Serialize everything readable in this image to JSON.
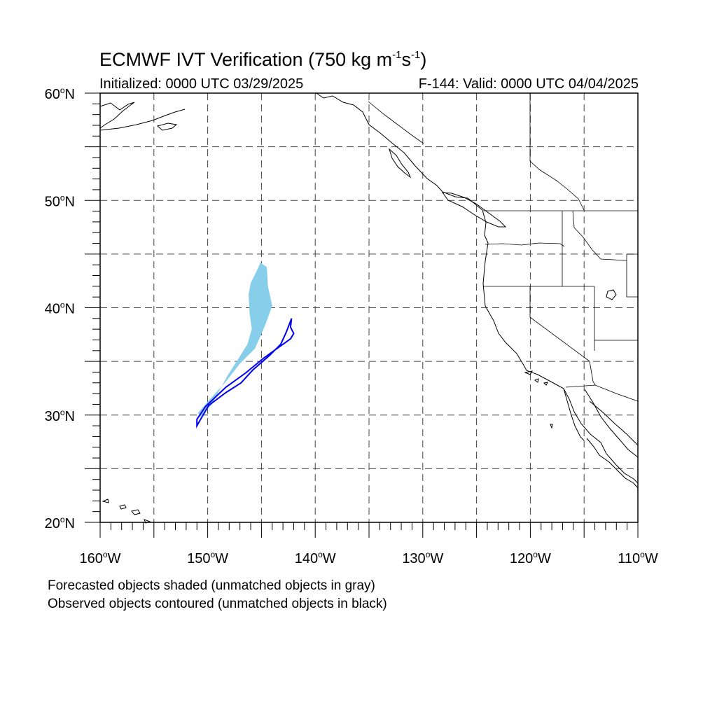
{
  "header": {
    "title_main": "ECMWF IVT Verification (750 kg m",
    "title_exp1": "-1",
    "title_mid": "s",
    "title_exp2": "-1",
    "title_end": ")",
    "initialized": "Initialized: 0000 UTC 03/29/2025",
    "valid": "F-144: Valid: 0000 UTC 04/04/2025"
  },
  "axes": {
    "lat_ticks": [
      {
        "value": 60,
        "num": "60",
        "hemi": "N"
      },
      {
        "value": 50,
        "num": "50",
        "hemi": "N"
      },
      {
        "value": 40,
        "num": "40",
        "hemi": "N"
      },
      {
        "value": 30,
        "num": "30",
        "hemi": "N"
      },
      {
        "value": 20,
        "num": "20",
        "hemi": "N"
      }
    ],
    "lon_ticks": [
      {
        "value": -160,
        "num": "160",
        "hemi": "W"
      },
      {
        "value": -150,
        "num": "150",
        "hemi": "W"
      },
      {
        "value": -140,
        "num": "140",
        "hemi": "W"
      },
      {
        "value": -130,
        "num": "130",
        "hemi": "W"
      },
      {
        "value": -120,
        "num": "120",
        "hemi": "W"
      },
      {
        "value": -110,
        "num": "110",
        "hemi": "W"
      }
    ],
    "lon_range": [
      -160,
      -110
    ],
    "lat_range": [
      20,
      60
    ],
    "grid_interval_deg": 5,
    "grid": true
  },
  "map_objects": {
    "forecast_object": {
      "color": "#87ceeb",
      "polygon": [
        [
          -145.1,
          44.2
        ],
        [
          -144.5,
          43.8
        ],
        [
          -144.4,
          42.0
        ],
        [
          -144.0,
          40.2
        ],
        [
          -144.6,
          38.5
        ],
        [
          -145.6,
          36.2
        ],
        [
          -147.0,
          34.8
        ],
        [
          -148.4,
          33.0
        ],
        [
          -149.5,
          31.8
        ],
        [
          -150.9,
          30.2
        ],
        [
          -150.7,
          29.8
        ],
        [
          -149.6,
          31.0
        ],
        [
          -148.9,
          32.3
        ],
        [
          -148.2,
          33.6
        ],
        [
          -147.3,
          35.0
        ],
        [
          -146.3,
          36.6
        ],
        [
          -145.9,
          38.0
        ],
        [
          -146.1,
          39.5
        ],
        [
          -146.2,
          41.2
        ],
        [
          -146.0,
          42.3
        ],
        [
          -145.5,
          43.3
        ]
      ]
    },
    "observed_object": {
      "color": "#0000ee",
      "polygon": [
        [
          -142.2,
          39.0
        ],
        [
          -142.3,
          38.2
        ],
        [
          -142.0,
          37.6
        ],
        [
          -142.3,
          37.1
        ],
        [
          -144.8,
          35.3
        ],
        [
          -146.5,
          33.9
        ],
        [
          -148.3,
          32.6
        ],
        [
          -150.2,
          30.8
        ],
        [
          -151.0,
          29.6
        ],
        [
          -151.0,
          29.0
        ],
        [
          -150.6,
          29.7
        ],
        [
          -149.9,
          30.9
        ],
        [
          -148.3,
          32.1
        ],
        [
          -146.9,
          33.0
        ],
        [
          -145.8,
          34.2
        ],
        [
          -144.2,
          35.6
        ],
        [
          -143.2,
          36.6
        ],
        [
          -142.7,
          37.7
        ]
      ]
    },
    "coastline_color": "#000000"
  },
  "footer": {
    "line1": "Forecasted objects shaded (unmatched objects in gray)",
    "line2": "Observed objects contoured (unmatched objects in black)"
  }
}
